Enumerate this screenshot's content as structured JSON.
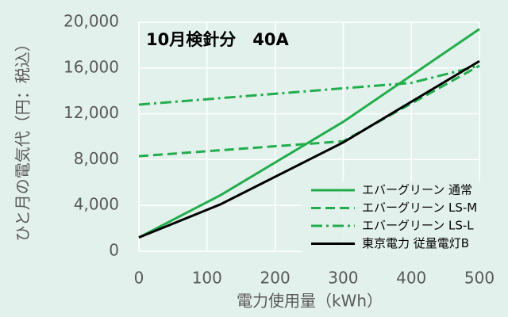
{
  "chart_data": {
    "type": "line",
    "title": "10月検針分　40A",
    "xlabel": "電力使用量（kWh）",
    "ylabel": "ひと月の電気代（円：税込）",
    "xlim": [
      0,
      500
    ],
    "xticks": [
      0,
      100,
      200,
      300,
      400,
      500
    ],
    "ylim": [
      0,
      20000
    ],
    "yticks": [
      0,
      {
        "value": 4000,
        "label": "4,000"
      },
      {
        "value": 8000,
        "label": "8,000"
      },
      {
        "value": 12000,
        "label": "12,000"
      },
      {
        "value": 16000,
        "label": "16,000"
      },
      {
        "value": 20000,
        "label": "20,000"
      }
    ],
    "grid": true,
    "legend": "lower right",
    "series": [
      {
        "name": "エバーグリーン 通常",
        "color": "#22ad4c",
        "style": "solid",
        "x": [
          0,
          120,
          300,
          500
        ],
        "values": [
          1200,
          4900,
          11300,
          19400
        ]
      },
      {
        "name": "エバーグリーン LS-M",
        "color": "#22ad4c",
        "style": "dashed",
        "x": [
          0,
          300,
          500
        ],
        "values": [
          8300,
          9600,
          16200
        ]
      },
      {
        "name": "エバーグリーン LS-L",
        "color": "#22ad4c",
        "style": "dashdot",
        "x": [
          0,
          400,
          500
        ],
        "values": [
          12800,
          14700,
          16200
        ]
      },
      {
        "name": "東京電力 従量電灯B",
        "color": "#000000",
        "style": "solid",
        "x": [
          0,
          120,
          300,
          500
        ],
        "values": [
          1200,
          4100,
          9500,
          16600
        ]
      }
    ]
  }
}
